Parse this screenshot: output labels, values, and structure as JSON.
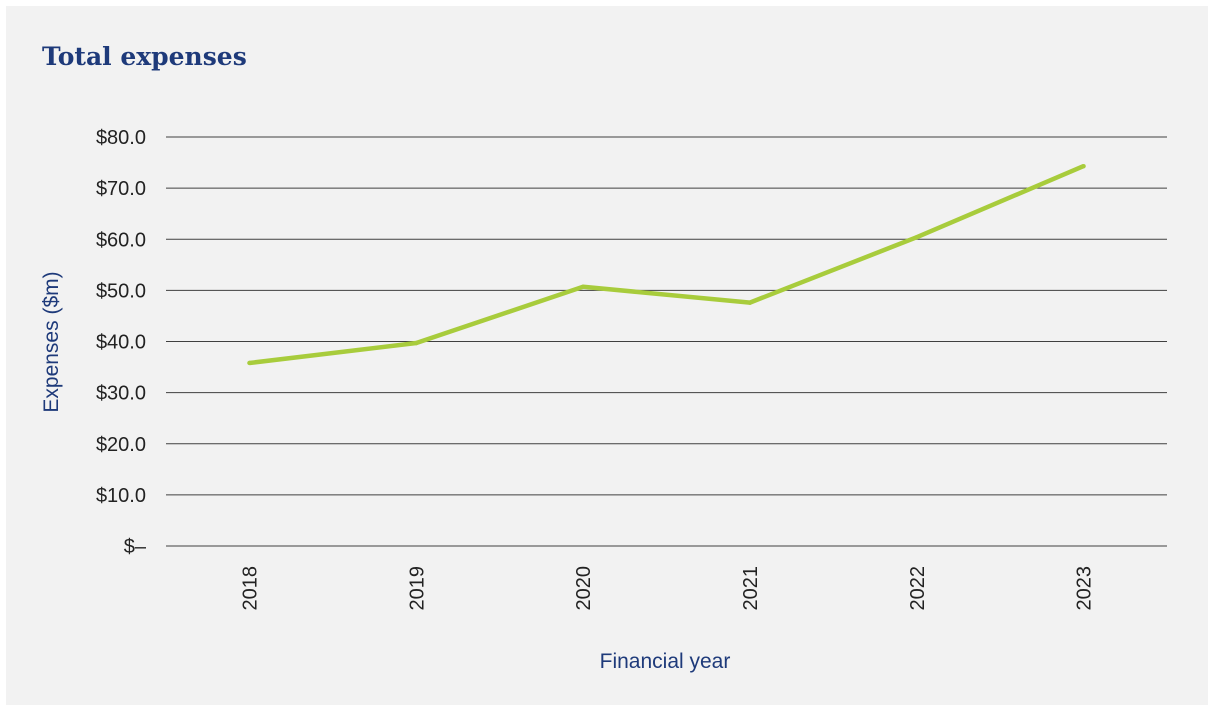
{
  "chart_data": {
    "type": "line",
    "title": "Total expenses",
    "xlabel": "Financial year",
    "ylabel": "Expenses ($m)",
    "categories": [
      "2018",
      "2019",
      "2020",
      "2021",
      "2022",
      "2023"
    ],
    "series": [
      {
        "values": [
          35.8,
          39.7,
          50.7,
          47.6,
          60.4,
          74.3
        ],
        "color": "#a8cc3c"
      }
    ],
    "ylim": [
      0,
      80
    ],
    "yticks": [
      0,
      10,
      20,
      30,
      40,
      50,
      60,
      70,
      80
    ],
    "ytick_labels": [
      "$–",
      "$10.0",
      "$20.0",
      "$30.0",
      "$40.0",
      "$50.0",
      "$60.0",
      "$70.0",
      "$80.0"
    ],
    "grid": true,
    "legend": "none"
  }
}
